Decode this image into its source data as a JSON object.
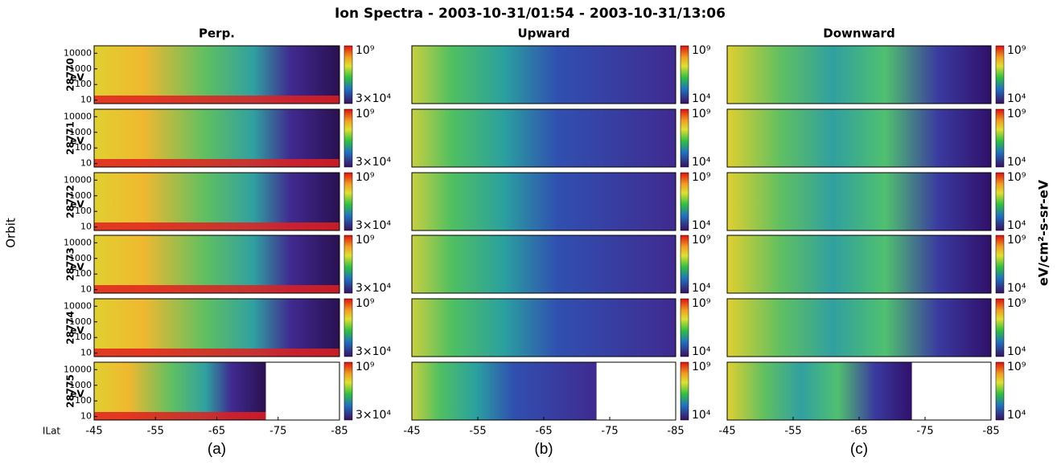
{
  "title": "Ion Spectra - 2003-10-31/01:54 - 2003-10-31/13:06",
  "x_label": "ILat",
  "colorbar_label": "eV/cm²-s-sr-eV",
  "rows": {
    "label": "Orbit",
    "unit": "eV",
    "orbits": [
      "28770",
      "28771",
      "28772",
      "28773",
      "28774",
      "28775"
    ]
  },
  "chart_data": [
    {
      "type": "heatmap",
      "title": "Perp.",
      "panel_label": "(a)",
      "xlim": [
        -45,
        -85
      ],
      "xticks": [
        -45,
        -55,
        -65,
        -75,
        -85
      ],
      "ylim": [
        6,
        30000
      ],
      "yticks": [
        10,
        100,
        1000,
        10000
      ],
      "log_y": true,
      "colorbar": {
        "lim": [
          30000,
          1000000000
        ],
        "ticks": [
          {
            "value": 1000000000,
            "label": "10⁹"
          },
          {
            "value": 30000,
            "label": "3×10⁴"
          }
        ]
      }
    },
    {
      "type": "heatmap",
      "title": "Upward",
      "panel_label": "(b)",
      "xlim": [
        -45,
        -85
      ],
      "xticks": [
        -45,
        -55,
        -65,
        -75,
        -85
      ],
      "colorbar": {
        "lim": [
          10000,
          1000000000
        ],
        "ticks": [
          {
            "value": 1000000000,
            "label": "10⁹"
          },
          {
            "value": 10000,
            "label": "10⁴"
          }
        ]
      }
    },
    {
      "type": "heatmap",
      "title": "Downward",
      "panel_label": "(c)",
      "xlim": [
        -45,
        -85
      ],
      "xticks": [
        -45,
        -55,
        -65,
        -75,
        -85
      ],
      "colorbar": {
        "lim": [
          10000,
          1000000000
        ],
        "ticks": [
          {
            "value": 1000000000,
            "label": "10⁹"
          },
          {
            "value": 10000,
            "label": "10⁴"
          }
        ]
      }
    }
  ]
}
